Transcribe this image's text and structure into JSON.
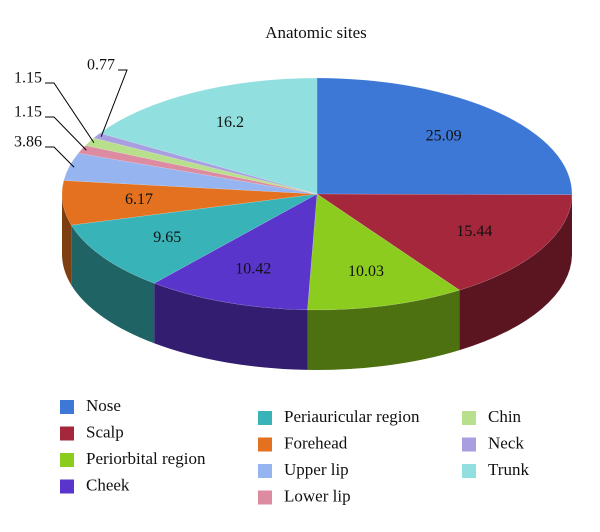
{
  "chart_data": {
    "type": "pie",
    "title": "Anatomic sites",
    "categories": [
      "Nose",
      "Scalp",
      "Periorbital region",
      "Cheek",
      "Periauricular region",
      "Forehead",
      "Upper lip",
      "Lower lip",
      "Chin",
      "Neck",
      "Trunk"
    ],
    "values": [
      25.09,
      15.44,
      10.03,
      10.42,
      9.65,
      6.17,
      3.86,
      1.15,
      1.15,
      0.77,
      16.2
    ],
    "colors": [
      "#3d78d6",
      "#a4273b",
      "#8ccc1f",
      "#5a35cc",
      "#38b4b8",
      "#e3711f",
      "#95b4f0",
      "#dd8ba0",
      "#b8e08c",
      "#a99fe0",
      "#92dfe0"
    ]
  }
}
